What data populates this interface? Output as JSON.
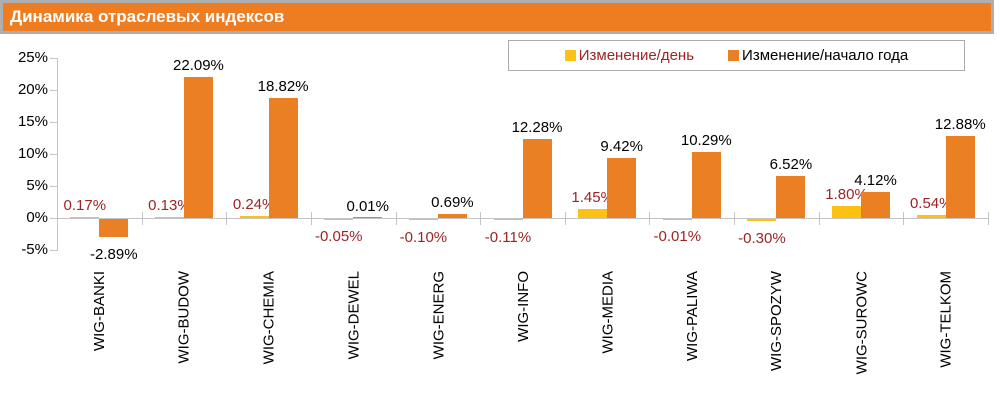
{
  "header": {
    "title": "Динамика отраслевых индексов"
  },
  "chart_data": {
    "type": "bar",
    "title": "Динамика отраслевых индексов",
    "categories": [
      "WIG-BANKI",
      "WIG-BUDOW",
      "WIG-CHEMIA",
      "WIG-DEWEL",
      "WIG-ENERG",
      "WIG-INFO",
      "WIG-MEDIA",
      "WIG-PALIWA",
      "WIG-SPOZYW",
      "WIG-SUROWC",
      "WIG-TELKOM"
    ],
    "series": [
      {
        "name": "Изменение/день",
        "color": "#FDC113",
        "label_color": "#9B2426",
        "values": [
          0.17,
          0.13,
          0.24,
          -0.05,
          -0.1,
          -0.11,
          1.45,
          -0.01,
          -0.3,
          1.8,
          0.54
        ]
      },
      {
        "name": "Изменение/начало года",
        "color": "#EA8023",
        "label_color": "#000000",
        "values": [
          -2.89,
          22.09,
          18.82,
          0.01,
          0.69,
          12.28,
          9.42,
          10.29,
          6.52,
          4.12,
          12.88
        ]
      }
    ],
    "y_axis": {
      "min": -5,
      "max": 25,
      "step": 5,
      "suffix": "%"
    },
    "value_label_format": "0.00%",
    "grid": false,
    "legend_position": "top-right"
  },
  "colors": {
    "header_bg": "#EE7D22",
    "header_border": "#AEAEAE",
    "header_text": "#FFFFFF",
    "axis": "#C4C4C4",
    "day_bar": "#FDC113",
    "ytd_bar": "#EA8023",
    "day_label_text": "#9B2426",
    "ytd_label_text": "#000000",
    "background": "#FFFFFF"
  }
}
